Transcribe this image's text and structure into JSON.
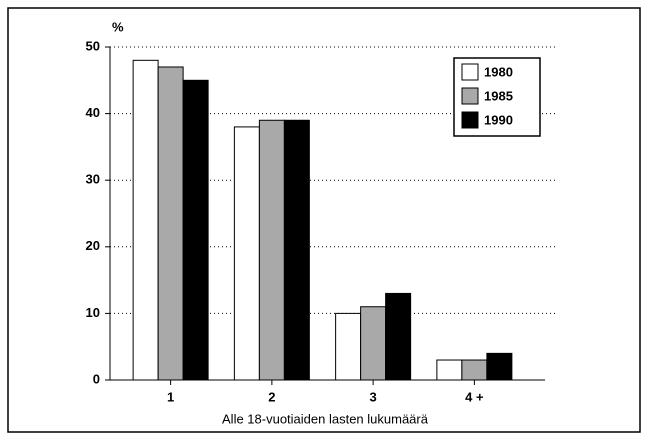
{
  "chart_data": {
    "type": "bar",
    "y_axis_label": "%",
    "x_axis_label": "Alle 18-vuotiaiden lasten lukumäärä",
    "categories": [
      "1",
      "2",
      "3",
      "4 +"
    ],
    "series": [
      {
        "name": "1980",
        "color": "#ffffff",
        "values": [
          48,
          38,
          10,
          3
        ]
      },
      {
        "name": "1985",
        "color": "#a9a9a9",
        "values": [
          47,
          39,
          11,
          3
        ]
      },
      {
        "name": "1990",
        "color": "#000000",
        "values": [
          45,
          39,
          13,
          4
        ]
      }
    ],
    "ylim": [
      0,
      50
    ],
    "yticks": [
      0,
      10,
      20,
      30,
      40,
      50
    ],
    "grid": true,
    "legend": "top-right"
  }
}
